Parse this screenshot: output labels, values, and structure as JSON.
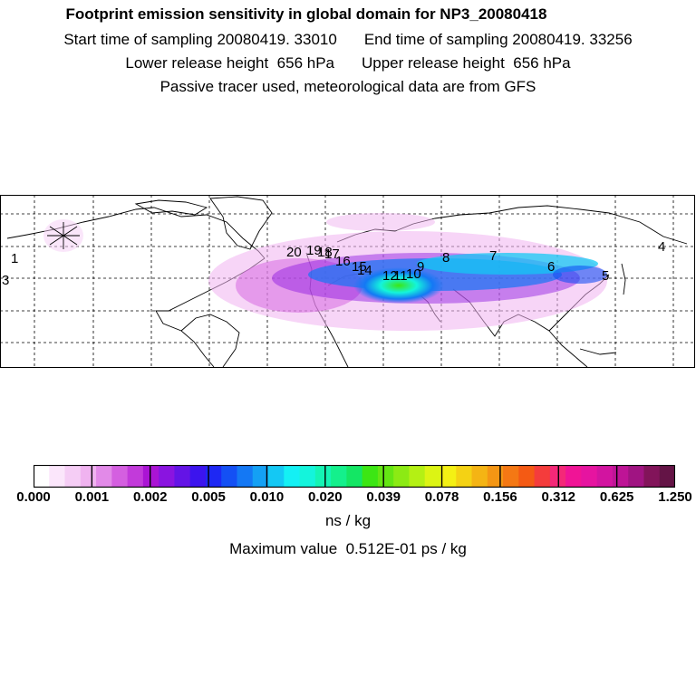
{
  "header": {
    "title": "Footprint emission sensitivity in global domain for NP3_20080418",
    "start_label": "Start time of sampling 20080419. 33010",
    "end_label": "End time of sampling 20080419. 33256",
    "lower_label": "Lower release height  656 hPa",
    "upper_label": "Upper release height  656 hPa",
    "tracer_note": "Passive tracer used, meteorological data are from GFS"
  },
  "map": {
    "day_markers": [
      "1",
      "3",
      "4",
      "5",
      "6",
      "7",
      "8",
      "9",
      "10",
      "11",
      "12",
      "14",
      "15",
      "16",
      "17",
      "18",
      "19",
      "20"
    ]
  },
  "colorbar": {
    "tick_labels": [
      "0.000",
      "0.001",
      "0.002",
      "0.005",
      "0.010",
      "0.020",
      "0.039",
      "0.078",
      "0.156",
      "0.312",
      "0.625",
      "1.250"
    ],
    "colors": [
      "#ffffff",
      "#fbe6fb",
      "#f5cdf5",
      "#f0b3f0",
      "#e28ae8",
      "#d45fe0",
      "#c23ada",
      "#aa14d4",
      "#8a14e0",
      "#6414e6",
      "#3c14ee",
      "#1e28f4",
      "#1450f4",
      "#1478f4",
      "#14a0f4",
      "#14c8f4",
      "#14f0f4",
      "#14f4dc",
      "#14f4b4",
      "#14f08c",
      "#14e664",
      "#3ce614",
      "#64e614",
      "#8cea14",
      "#b4f014",
      "#dcf414",
      "#f4f014",
      "#f4d214",
      "#f4b414",
      "#f49614",
      "#f47814",
      "#f45a14",
      "#f43c3c",
      "#f42878",
      "#f01496",
      "#e614a0",
      "#d214a0",
      "#be1496",
      "#a01482",
      "#82145a",
      "#641446"
    ],
    "unit": "ns / kg",
    "max_value_label": "Maximum value  0.512E-01 ps / kg"
  }
}
